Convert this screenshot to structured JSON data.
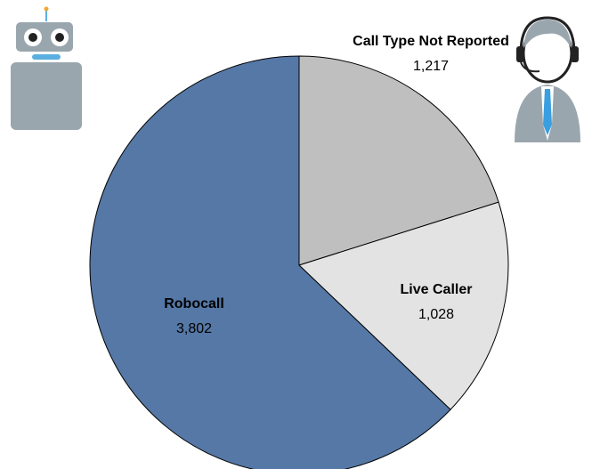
{
  "chart_data": {
    "type": "pie",
    "categories": [
      "Call Type Not Reported",
      "Live Caller",
      "Robocall"
    ],
    "values": [
      1217,
      1028,
      3802
    ],
    "value_labels": [
      "1,217",
      "1,028",
      "3,802"
    ],
    "colors": [
      "#c0bfc0",
      "#e4e3e4",
      "#5578a6"
    ]
  }
}
